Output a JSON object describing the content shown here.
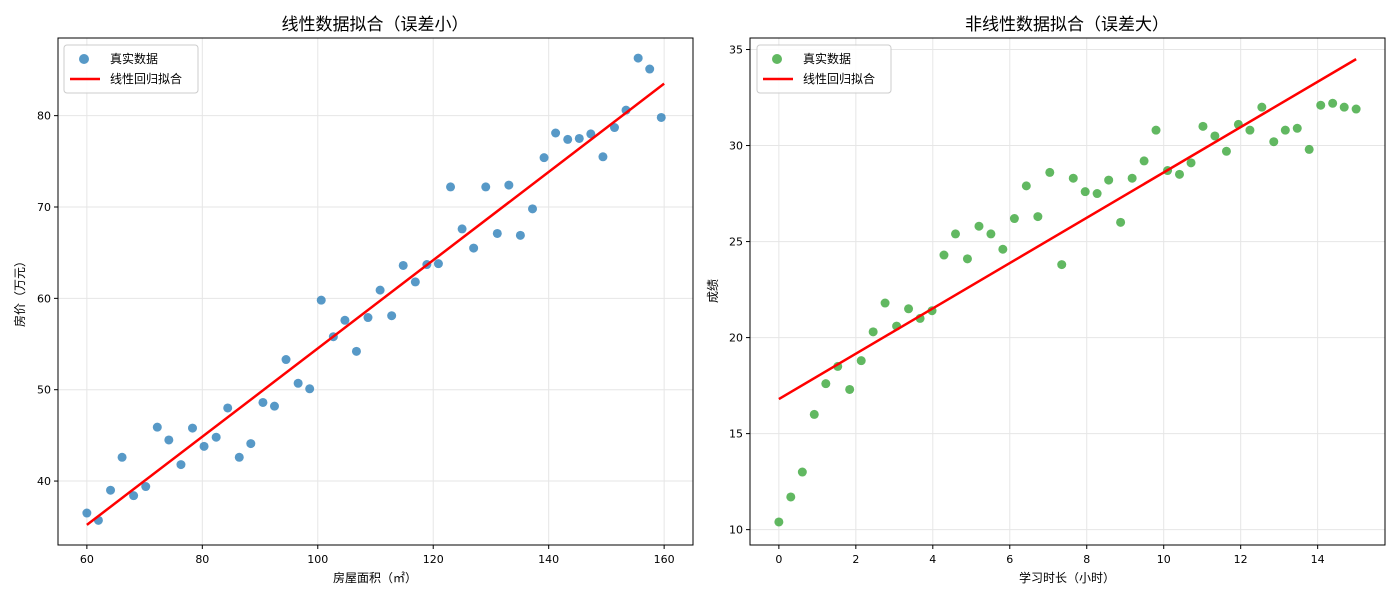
{
  "chart_data": [
    {
      "type": "scatter",
      "title": "线性数据拟合（误差小）",
      "xlabel": "房屋面积（㎡）",
      "ylabel": "房价（万元）",
      "xlim": [
        55,
        165
      ],
      "ylim": [
        33,
        88.5
      ],
      "xticks": [
        60,
        80,
        100,
        120,
        140,
        160
      ],
      "yticks": [
        40,
        50,
        60,
        70,
        80
      ],
      "grid": true,
      "legend_position": "top-left",
      "scatter_color": "#1f77b4",
      "line_color": "#ff0000",
      "series": [
        {
          "name": "真实数据",
          "kind": "scatter",
          "x": [
            60,
            62,
            64.1,
            66.1,
            68.1,
            70.2,
            72.2,
            74.2,
            76.3,
            78.3,
            80.3,
            82.4,
            84.4,
            86.4,
            88.4,
            90.5,
            92.5,
            94.5,
            96.6,
            98.6,
            100.6,
            102.7,
            104.7,
            106.7,
            108.7,
            110.8,
            112.8,
            114.8,
            116.9,
            118.9,
            120.9,
            123,
            125,
            127,
            129.1,
            131.1,
            133.1,
            135.1,
            137.2,
            139.2,
            141.2,
            143.3,
            145.3,
            147.3,
            149.4,
            151.4,
            153.4,
            155.5,
            157.5,
            159.5
          ],
          "y": [
            36.5,
            35.7,
            39,
            42.6,
            38.4,
            39.4,
            45.9,
            44.5,
            41.8,
            45.8,
            43.8,
            44.8,
            48,
            42.6,
            44.1,
            48.6,
            48.2,
            53.3,
            50.7,
            50.1,
            59.8,
            55.8,
            57.6,
            54.2,
            57.9,
            60.9,
            58.1,
            63.6,
            61.8,
            63.7,
            63.8,
            72.2,
            67.6,
            65.5,
            72.2,
            67.1,
            72.4,
            66.9,
            69.8,
            75.4,
            78.1,
            77.4,
            77.5,
            78,
            75.5,
            78.7,
            80.6,
            86.3,
            85.1,
            79.8
          ]
        },
        {
          "name": "线性回归拟合",
          "kind": "line",
          "x": [
            60,
            160
          ],
          "y": [
            35.2,
            83.5
          ]
        }
      ]
    },
    {
      "type": "scatter",
      "title": "非线性数据拟合（误差大）",
      "xlabel": "学习时长（小时）",
      "ylabel": "成绩",
      "xlim": [
        -0.75,
        15.75
      ],
      "ylim": [
        9.2,
        35.6
      ],
      "xticks": [
        0,
        2,
        4,
        6,
        8,
        10,
        12,
        14
      ],
      "yticks": [
        10,
        15,
        20,
        25,
        30,
        35
      ],
      "grid": true,
      "legend_position": "top-left",
      "scatter_color": "#2ca02c",
      "line_color": "#ff0000",
      "series": [
        {
          "name": "真实数据",
          "kind": "scatter",
          "x": [
            0,
            0.31,
            0.61,
            0.92,
            1.22,
            1.53,
            1.84,
            2.14,
            2.45,
            2.76,
            3.06,
            3.37,
            3.67,
            3.98,
            4.29,
            4.59,
            4.9,
            5.2,
            5.51,
            5.82,
            6.12,
            6.43,
            6.73,
            7.04,
            7.35,
            7.65,
            7.96,
            8.27,
            8.57,
            8.88,
            9.18,
            9.49,
            9.8,
            10.1,
            10.41,
            10.71,
            11.02,
            11.33,
            11.63,
            11.94,
            12.24,
            12.55,
            12.86,
            13.16,
            13.47,
            13.78,
            14.08,
            14.39,
            14.69,
            15
          ],
          "y": [
            10.4,
            11.7,
            13,
            16,
            17.6,
            18.5,
            17.3,
            18.8,
            20.3,
            21.8,
            20.6,
            21.5,
            21,
            21.4,
            24.3,
            25.4,
            24.1,
            25.8,
            25.4,
            24.6,
            26.2,
            27.9,
            26.3,
            28.6,
            23.8,
            28.3,
            27.6,
            27.5,
            28.2,
            26,
            28.3,
            29.2,
            30.8,
            28.7,
            28.5,
            29.1,
            31,
            30.5,
            29.7,
            31.1,
            30.8,
            32,
            30.2,
            30.8,
            30.9,
            29.8,
            32.1,
            32.2,
            32,
            31.9
          ]
        },
        {
          "name": "线性回归拟合",
          "kind": "line",
          "x": [
            0,
            15
          ],
          "y": [
            16.8,
            34.5
          ]
        }
      ]
    }
  ]
}
